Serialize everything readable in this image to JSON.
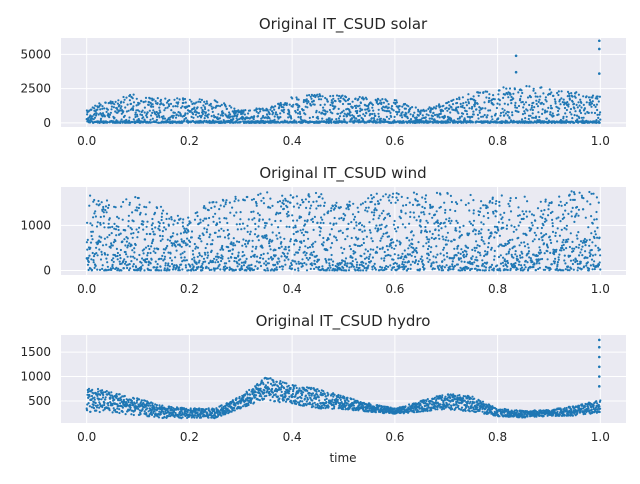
{
  "figure": {
    "xlabel": "time"
  },
  "chart_data": [
    {
      "type": "scatter",
      "title": "Original IT_CSUD solar",
      "xlabel": "",
      "ylabel": "",
      "xlim": [
        -0.05,
        1.05
      ],
      "ylim": [
        -300,
        6200
      ],
      "xticks": [
        0.0,
        0.2,
        0.4,
        0.6,
        0.8,
        1.0
      ],
      "xtick_labels": [
        "0.0",
        "0.2",
        "0.4",
        "0.6",
        "0.8",
        "1.0"
      ],
      "yticks": [
        0,
        2500,
        5000
      ],
      "ytick_labels": [
        "0",
        "2500",
        "5000"
      ],
      "grid": true,
      "series": [
        {
          "color": "#1f77b4",
          "envelope_x": [
            0.0,
            0.02,
            0.05,
            0.09,
            0.1,
            0.15,
            0.2,
            0.25,
            0.3,
            0.35,
            0.4,
            0.45,
            0.5,
            0.55,
            0.6,
            0.65,
            0.7,
            0.75,
            0.8,
            0.85,
            0.9,
            0.95,
            0.98,
            1.0
          ],
          "envelope_max": [
            900,
            1400,
            1600,
            2200,
            1800,
            1900,
            1850,
            1700,
            1000,
            1100,
            1900,
            2100,
            2000,
            1900,
            1700,
            1000,
            1500,
            2200,
            2600,
            2700,
            2600,
            2300,
            2000,
            2000
          ],
          "outliers": [
            [
              0.836,
              4900
            ],
            [
              0.836,
              3700
            ],
            [
              0.998,
              6000
            ],
            [
              0.998,
              5400
            ],
            [
              0.998,
              3600
            ]
          ]
        }
      ]
    },
    {
      "type": "scatter",
      "title": "Original IT_CSUD wind",
      "xlabel": "",
      "ylabel": "",
      "xlim": [
        -0.05,
        1.05
      ],
      "ylim": [
        -100,
        1850
      ],
      "xticks": [
        0.0,
        0.2,
        0.4,
        0.6,
        0.8,
        1.0
      ],
      "xtick_labels": [
        "0.0",
        "0.2",
        "0.4",
        "0.6",
        "0.8",
        "1.0"
      ],
      "yticks": [
        0,
        1000
      ],
      "ytick_labels": [
        "0",
        "1000"
      ],
      "grid": true,
      "series": [
        {
          "color": "#1f77b4",
          "envelope_x": [
            0.0,
            0.05,
            0.1,
            0.15,
            0.2,
            0.25,
            0.3,
            0.35,
            0.4,
            0.45,
            0.5,
            0.55,
            0.6,
            0.65,
            0.7,
            0.75,
            0.8,
            0.85,
            0.9,
            0.95,
            1.0
          ],
          "envelope_max": [
            1750,
            1500,
            1650,
            1400,
            1200,
            1600,
            1650,
            1750,
            1700,
            1750,
            1500,
            1700,
            1750,
            1750,
            1750,
            1700,
            1700,
            1650,
            1600,
            1800,
            1750
          ],
          "outliers": []
        }
      ]
    },
    {
      "type": "scatter",
      "title": "Original IT_CSUD hydro",
      "xlabel": "time",
      "ylabel": "",
      "xlim": [
        -0.05,
        1.05
      ],
      "ylim": [
        50,
        1850
      ],
      "xticks": [
        0.0,
        0.2,
        0.4,
        0.6,
        0.8,
        1.0
      ],
      "xtick_labels": [
        "0.0",
        "0.2",
        "0.4",
        "0.6",
        "0.8",
        "1.0"
      ],
      "yticks": [
        500,
        1000,
        1500
      ],
      "ytick_labels": [
        "500",
        "1000",
        "1500"
      ],
      "grid": true,
      "series": [
        {
          "color": "#1f77b4",
          "envelope_x": [
            0.0,
            0.05,
            0.1,
            0.15,
            0.2,
            0.25,
            0.3,
            0.35,
            0.4,
            0.45,
            0.5,
            0.55,
            0.6,
            0.65,
            0.7,
            0.75,
            0.8,
            0.85,
            0.9,
            0.95,
            1.0
          ],
          "envelope_min": [
            280,
            260,
            200,
            150,
            150,
            150,
            350,
            520,
            430,
            350,
            330,
            280,
            230,
            280,
            330,
            280,
            190,
            160,
            190,
            200,
            260
          ],
          "envelope_max": [
            780,
            700,
            550,
            400,
            350,
            350,
            600,
            1000,
            830,
            750,
            600,
            450,
            350,
            500,
            650,
            600,
            350,
            300,
            320,
            400,
            520
          ],
          "outliers": [
            [
              0.998,
              1750
            ],
            [
              0.998,
              1600
            ],
            [
              0.998,
              1400
            ],
            [
              0.998,
              1200
            ],
            [
              0.998,
              1000
            ],
            [
              0.998,
              800
            ]
          ]
        }
      ]
    }
  ]
}
